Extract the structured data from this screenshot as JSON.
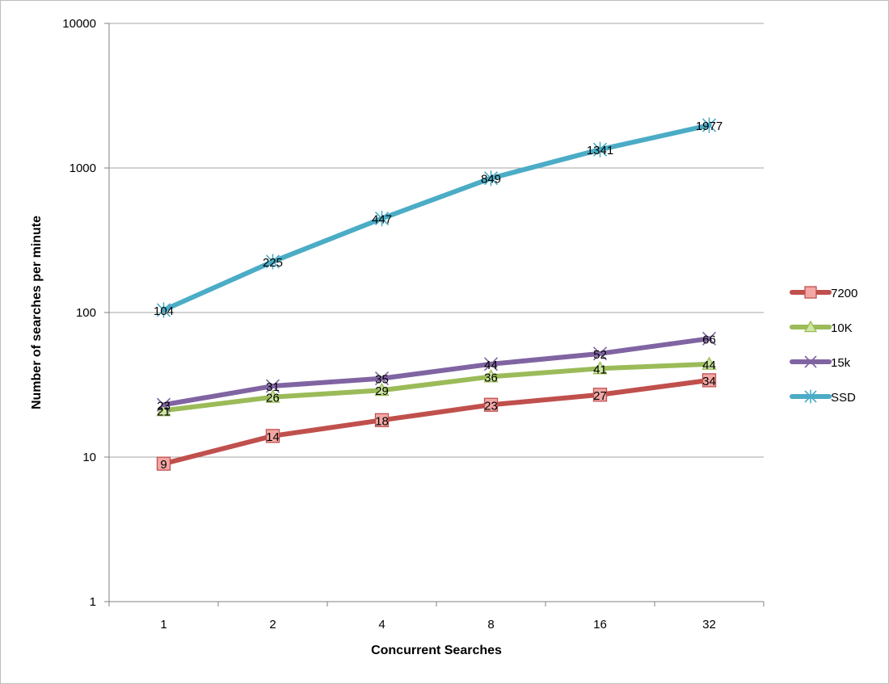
{
  "chart_data": {
    "type": "line",
    "title": "",
    "xlabel": "Concurrent Searches",
    "ylabel": "Number of searches per minute",
    "categories": [
      "1",
      "2",
      "4",
      "8",
      "16",
      "32"
    ],
    "y_scale": "log",
    "ylim": [
      1,
      10000
    ],
    "y_ticks": [
      "1",
      "10",
      "100",
      "1000",
      "10000"
    ],
    "grid": "horizontal",
    "legend_position": "right",
    "series": [
      {
        "name": "7200",
        "values": [
          9,
          14,
          18,
          23,
          27,
          34
        ],
        "color": "#c0504d",
        "marker_fill": "#f2a7a5",
        "marker": "square"
      },
      {
        "name": "10K",
        "values": [
          21,
          26,
          29,
          36,
          41,
          44
        ],
        "color": "#9bbb59",
        "marker_fill": "#cde6a0",
        "marker": "triangle"
      },
      {
        "name": "15k",
        "values": [
          23,
          31,
          35,
          44,
          52,
          66
        ],
        "color": "#8064a2",
        "marker_fill": "#c2b1d8",
        "marker": "x"
      },
      {
        "name": "SSD",
        "values": [
          104,
          225,
          447,
          849,
          1341,
          1977
        ],
        "color": "#4bacc6",
        "marker_fill": "#a9dcea",
        "marker": "star"
      }
    ]
  }
}
